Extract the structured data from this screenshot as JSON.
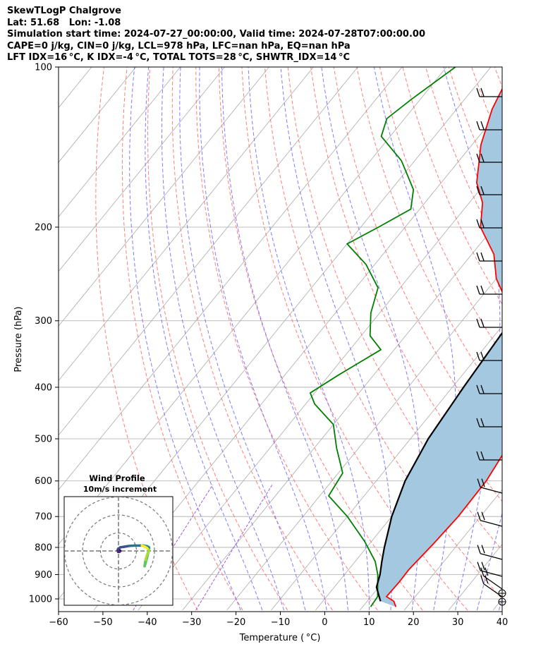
{
  "header": {
    "line1": "SkewTLogP Chalgrove",
    "line2": "Lat: 51.68   Lon: -1.08",
    "line3": "Simulation start time: 2024-07-27_00:00:00, Valid time: 2024-07-28T07:00:00.00",
    "line4": "CAPE=0 j/kg, CIN=0 j/kg, LCL=978 hPa, LFC=nan hPa, EQ=nan hPa",
    "line5": "LFT IDX=16 °C, K IDX=-4 °C, TOTAL TOTS=28 °C, SHWTR_IDX=14 °C"
  },
  "chart_data": [
    {
      "type": "line",
      "subtype": "skew-t log-p",
      "xlabel": "Temperature ( °C)",
      "ylabel": "Pressure (hPa)",
      "xlim": [
        -60,
        40
      ],
      "ylim": [
        1050,
        100
      ],
      "y_scale": "log",
      "x_ticks": [
        -60,
        -50,
        -40,
        -30,
        -20,
        -10,
        0,
        10,
        20,
        30,
        40
      ],
      "x_tick_labels": [
        "−60",
        "−50",
        "−40",
        "−30",
        "−20",
        "−10",
        "0",
        "10",
        "20",
        "30",
        "40"
      ],
      "y_ticks": [
        100,
        200,
        300,
        400,
        500,
        600,
        700,
        800,
        900,
        1000
      ],
      "y_tick_labels": [
        "100",
        "200",
        "300",
        "400",
        "500",
        "600",
        "700",
        "800",
        "900",
        "1000"
      ],
      "grid": true,
      "colors": {
        "temperature": "#ff0000",
        "dewpoint": "#008000",
        "parcel": "#000000",
        "fill": "#a4c8df",
        "dry_adiabat": "#ff6666",
        "moist_adiabat": "#6666ff",
        "mixing_ratio": "#a05ad8",
        "isotherm": "#aaaaaa"
      },
      "series": [
        {
          "key": "temperature",
          "points": [
            [
              17.5,
              1035
            ],
            [
              16,
              1010
            ],
            [
              13.5,
              990
            ],
            [
              13.7,
              930
            ],
            [
              13.6,
              880
            ],
            [
              14.4,
              790
            ],
            [
              15,
              700
            ],
            [
              14.8,
              600
            ],
            [
              13,
              500
            ],
            [
              10,
              450
            ],
            [
              5,
              400
            ],
            [
              -3,
              340
            ],
            [
              -8,
              300
            ],
            [
              -20,
              250
            ],
            [
              -25,
              225
            ],
            [
              -33,
              200
            ],
            [
              -37,
              180
            ],
            [
              -42,
              165
            ],
            [
              -48,
              140
            ],
            [
              -52,
              120
            ],
            [
              -55,
              100
            ]
          ]
        },
        {
          "key": "dewpoint",
          "points": [
            [
              11.8,
              1035
            ],
            [
              11.5,
              990
            ],
            [
              7.5,
              900
            ],
            [
              4.5,
              850
            ],
            [
              -1.5,
              780
            ],
            [
              -10,
              700
            ],
            [
              -18,
              640
            ],
            [
              -19,
              580
            ],
            [
              -25,
              520
            ],
            [
              -30,
              470
            ],
            [
              -38,
              430
            ],
            [
              -41,
              410
            ],
            [
              -38,
              380
            ],
            [
              -33,
              340
            ],
            [
              -38,
              320
            ],
            [
              -42,
              290
            ],
            [
              -45,
              260
            ],
            [
              -52,
              235
            ],
            [
              -60,
              215
            ],
            [
              -56,
              200
            ],
            [
              -52,
              185
            ],
            [
              -55,
              170
            ],
            [
              -63,
              150
            ],
            [
              -72,
              135
            ],
            [
              -74,
              125
            ],
            [
              -72,
              115
            ],
            [
              -68,
              100
            ]
          ]
        },
        {
          "key": "parcel",
          "points": [
            [
              13,
              1010
            ],
            [
              9.5,
              950
            ],
            [
              8,
              900
            ],
            [
              6,
              850
            ],
            [
              4,
              800
            ],
            [
              0,
              700
            ],
            [
              -3.5,
              600
            ],
            [
              -6,
              500
            ],
            [
              -7.5,
              400
            ],
            [
              -9,
              300
            ],
            [
              -11,
              200
            ],
            [
              -13,
              100
            ]
          ]
        }
      ]
    },
    {
      "type": "scatter",
      "subtype": "hodograph",
      "title": "Wind Profile",
      "subtitle": "10m/s increment",
      "rings_ms": [
        10,
        20,
        30
      ],
      "points": [
        [
          0,
          1
        ],
        [
          0.5,
          0.5
        ],
        [
          1,
          0
        ],
        [
          0.5,
          -0.5
        ],
        [
          -0.2,
          -0.5
        ],
        [
          -0.5,
          0.3
        ],
        [
          -0.2,
          1.2
        ],
        [
          1,
          2
        ],
        [
          3,
          2.3
        ],
        [
          6,
          2.8
        ],
        [
          9,
          3
        ],
        [
          12,
          3
        ],
        [
          14,
          3
        ],
        [
          16,
          2.6
        ],
        [
          17,
          2
        ],
        [
          17,
          0.5
        ],
        [
          16.5,
          -1
        ],
        [
          16,
          -3
        ],
        [
          15.5,
          -5
        ],
        [
          15,
          -7
        ],
        [
          14.5,
          -8.5
        ],
        [
          15,
          -5
        ],
        [
          16,
          -2
        ],
        [
          17,
          0.5
        ],
        [
          16,
          1.5
        ],
        [
          14.5,
          2.5
        ],
        [
          13,
          3
        ]
      ],
      "colormap": "viridis"
    }
  ]
}
